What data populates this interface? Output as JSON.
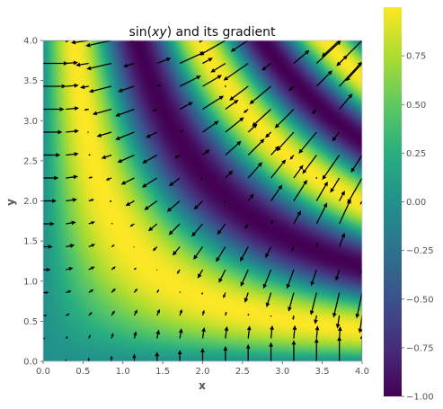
{
  "chart_data": {
    "type": "heatmap",
    "title": "sin(xy) and its gradient",
    "title_parts": {
      "prefix": "sin(",
      "var": "xy",
      "suffix": ") and its gradient"
    },
    "xlabel": "x",
    "ylabel": "y",
    "function": "sin(x*y)",
    "gradient": "(y*cos(x*y), x*cos(x*y))",
    "xlim": [
      0.0,
      4.0
    ],
    "ylim": [
      0.0,
      4.0
    ],
    "x_ticks": [
      "0.0",
      "0.5",
      "1.0",
      "1.5",
      "2.0",
      "2.5",
      "3.0",
      "3.5",
      "4.0"
    ],
    "y_ticks": [
      "0.0",
      "0.5",
      "1.0",
      "1.5",
      "2.0",
      "2.5",
      "3.0",
      "3.5",
      "4.0"
    ],
    "colormap": "viridis",
    "colorbar": {
      "range": [
        -1.0,
        1.0
      ],
      "ticks": [
        "0.75",
        "0.50",
        "0.25",
        "0.00",
        "−0.25",
        "−0.50",
        "−0.75",
        "−1.00"
      ],
      "tick_values": [
        0.75,
        0.5,
        0.25,
        0.0,
        -0.25,
        -0.5,
        -0.75,
        -1.0
      ]
    },
    "quiver_grid": {
      "nx": 15,
      "ny": 15,
      "xmin": 0.0,
      "xmax": 4.0,
      "ymin": 0.0,
      "ymax": 4.0
    },
    "grid": false,
    "legend": "none"
  }
}
